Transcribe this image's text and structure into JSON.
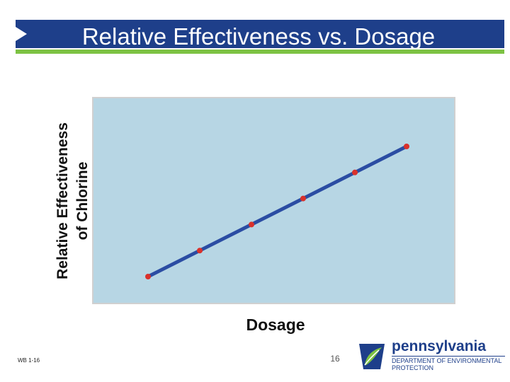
{
  "slide": {
    "title": "Relative Effectiveness vs. Dosage",
    "footer_code": "WB 1-16",
    "page_number": "16"
  },
  "logo": {
    "name": "pennsylvania",
    "dept_line1": "DEPARTMENT OF ENVIRONMENTAL",
    "dept_line2": "PROTECTION"
  },
  "colors": {
    "title_bar": "#1e3f8a",
    "accent_line": "#7dc243",
    "plot_bg": "#b7d6e4",
    "series_line": "#2b4da3",
    "markers": "#d9312b"
  },
  "chart_data": {
    "type": "line",
    "xlabel": "Dosage",
    "ylabel_lines": [
      "Relative Effectiveness",
      "of Chlorine"
    ],
    "x": [
      1,
      2,
      3,
      4,
      5,
      6
    ],
    "series": [
      {
        "values": [
          1,
          2,
          3,
          4,
          5,
          6
        ]
      }
    ],
    "grid": false,
    "axis_ticks": false
  }
}
